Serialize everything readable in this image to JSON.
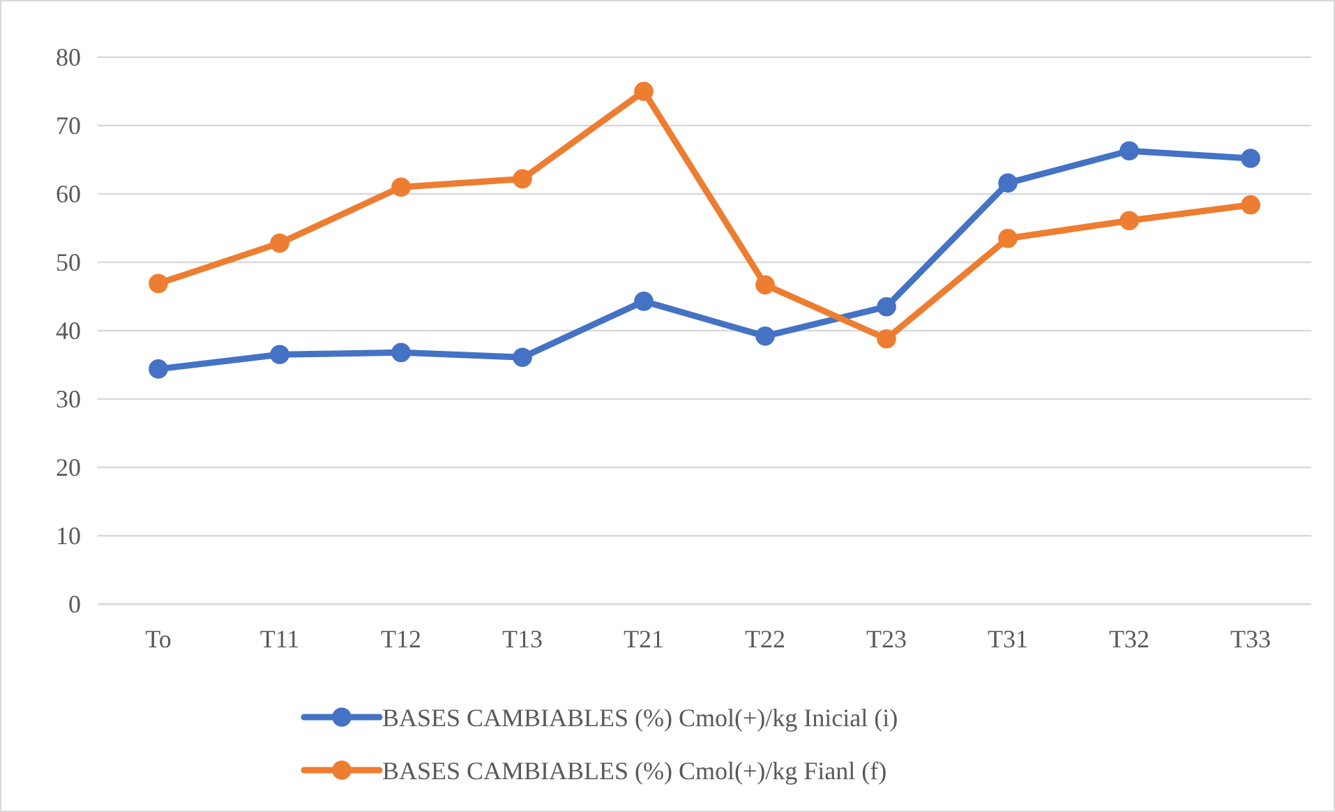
{
  "chart_data": {
    "type": "line",
    "categories": [
      "To",
      "T11",
      "T12",
      "T13",
      "T21",
      "T22",
      "T23",
      "T31",
      "T32",
      "T33"
    ],
    "series": [
      {
        "name": "BASES CAMBIABLES (%) Cmol(+)/kg Inicial (i)",
        "color": "#4472c4",
        "values": [
          34.4,
          36.5,
          36.8,
          36.1,
          44.3,
          39.2,
          43.5,
          61.6,
          66.3,
          65.2
        ]
      },
      {
        "name": "BASES CAMBIABLES (%) Cmol(+)/kg Fianl (f)",
        "color": "#ed7d31",
        "values": [
          46.9,
          52.8,
          61.0,
          62.2,
          75.0,
          46.7,
          38.8,
          53.5,
          56.1,
          58.4
        ]
      }
    ],
    "ylim": [
      0,
      80
    ],
    "yticks": [
      0,
      10,
      20,
      30,
      40,
      50,
      60,
      70,
      80
    ],
    "grid": "y",
    "legend": "bottom",
    "marker": "circle",
    "line_style": "solid"
  }
}
